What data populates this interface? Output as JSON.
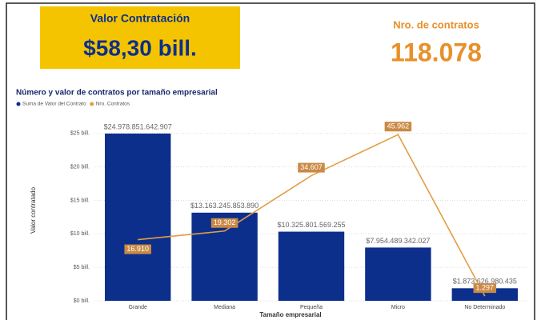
{
  "cards": [
    {
      "title": "Valor Contratación",
      "value": "$58,30 bill."
    },
    {
      "title": "Nro. de contratos",
      "value": "118.078"
    }
  ],
  "chart_data": {
    "type": "bar_line",
    "title": "Número y valor de contratos por tamaño empresarial",
    "x_label": "Tamaño empresarial",
    "y_label": "Valor contratado",
    "categories": [
      "Grande",
      "Mediana",
      "Pequeña",
      "Micro",
      "No Determinado"
    ],
    "series": [
      {
        "name": "Suma de Valor del Contrato",
        "color": "#0c2f8c",
        "kind": "bar",
        "values": [
          24978851642907,
          13163245853890,
          10325801569255,
          7954489342027,
          1873626980435
        ],
        "value_labels": [
          "$24.978.851.642.907",
          "$13.163.245.853.890",
          "$10.325.801.569.255",
          "$7.954.489.342.027",
          "$1.873.626.980.435"
        ]
      },
      {
        "name": "Nro. Contratos",
        "color": "#e39d45",
        "kind": "line",
        "axis": "y2",
        "values": [
          16910,
          19302,
          34607,
          45962,
          1297
        ],
        "value_labels": [
          "16.910",
          "19.302",
          "34.607",
          "45.962",
          "1.297"
        ]
      }
    ],
    "ylim": [
      0,
      27000000000000
    ],
    "yticks": [
      {
        "value": 0,
        "label": "$0 bill."
      },
      {
        "value": 5000000000000,
        "label": "$5 bill."
      },
      {
        "value": 10000000000000,
        "label": "$10 bill."
      },
      {
        "value": 15000000000000,
        "label": "$15 bill."
      },
      {
        "value": 20000000000000,
        "label": "$20 bill."
      },
      {
        "value": 25000000000000,
        "label": "$25 bill."
      }
    ],
    "y2lim": [
      0,
      50000
    ],
    "grid": true,
    "legend": "top-left"
  }
}
